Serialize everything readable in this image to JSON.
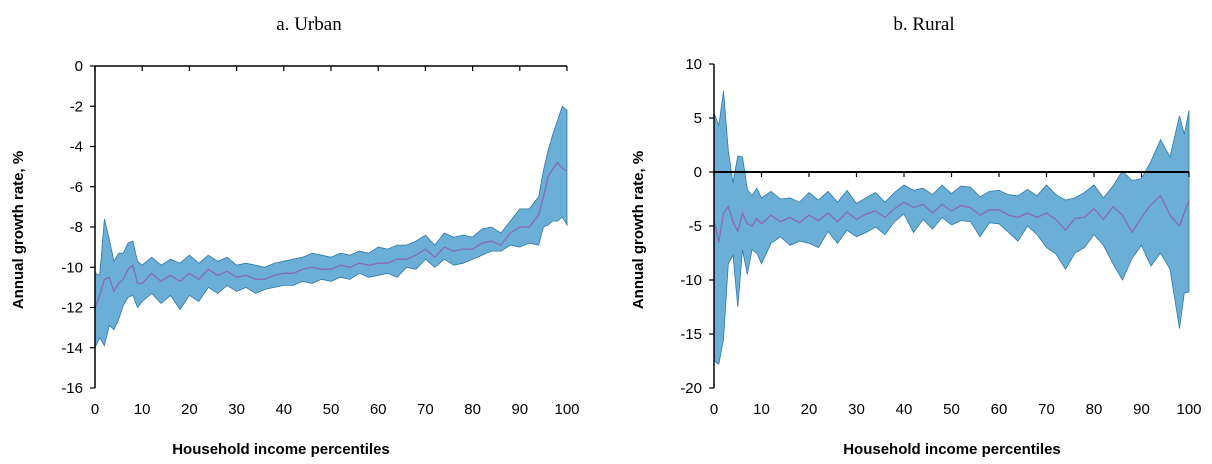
{
  "colors": {
    "band": "#6baed6",
    "band_edge": "#2e7aa6",
    "median": "#8a6bb5",
    "axis": "#000000"
  },
  "chart_data": [
    {
      "id": "urban",
      "type": "area",
      "title": "a. Urban",
      "xlabel": "Household income percentiles",
      "ylabel": "Annual growth rate, %",
      "xlim": [
        0,
        100
      ],
      "ylim": [
        -16,
        0
      ],
      "xticks": [
        0,
        10,
        20,
        30,
        40,
        50,
        60,
        70,
        80,
        90,
        100
      ],
      "yticks": [
        0,
        -2,
        -4,
        -6,
        -8,
        -10,
        -12,
        -14,
        -16
      ],
      "zero_line": false,
      "series": [
        {
          "role": "upper",
          "x": [
            0,
            1,
            2,
            3,
            4,
            5,
            6,
            7,
            8,
            9,
            10,
            12,
            14,
            16,
            18,
            20,
            22,
            24,
            26,
            28,
            30,
            32,
            34,
            36,
            38,
            40,
            42,
            44,
            46,
            48,
            50,
            52,
            54,
            56,
            58,
            60,
            62,
            64,
            66,
            68,
            70,
            72,
            74,
            76,
            78,
            80,
            82,
            84,
            86,
            88,
            90,
            92,
            94,
            95,
            96,
            97,
            98,
            99,
            100
          ],
          "y": [
            -10.3,
            -10.4,
            -7.6,
            -8.6,
            -9.7,
            -9.3,
            -9.3,
            -8.8,
            -8.7,
            -9.7,
            -9.9,
            -9.5,
            -9.9,
            -9.6,
            -9.8,
            -9.4,
            -9.8,
            -9.4,
            -9.7,
            -9.5,
            -9.9,
            -9.8,
            -9.9,
            -10.0,
            -9.8,
            -9.7,
            -9.6,
            -9.5,
            -9.3,
            -9.4,
            -9.5,
            -9.3,
            -9.4,
            -9.2,
            -9.3,
            -9.0,
            -9.1,
            -8.9,
            -8.9,
            -8.7,
            -8.4,
            -8.9,
            -8.3,
            -8.5,
            -8.4,
            -8.5,
            -8.1,
            -8.0,
            -8.3,
            -7.7,
            -7.1,
            -7.1,
            -6.5,
            -5.2,
            -4.2,
            -3.4,
            -2.7,
            -2.0,
            -2.2
          ]
        },
        {
          "role": "median",
          "x": [
            0,
            1,
            2,
            3,
            4,
            5,
            6,
            7,
            8,
            9,
            10,
            12,
            14,
            16,
            18,
            20,
            22,
            24,
            26,
            28,
            30,
            32,
            34,
            36,
            38,
            40,
            42,
            44,
            46,
            48,
            50,
            52,
            54,
            56,
            58,
            60,
            62,
            64,
            66,
            68,
            70,
            72,
            74,
            76,
            78,
            80,
            82,
            84,
            86,
            88,
            90,
            92,
            94,
            95,
            96,
            97,
            98,
            99,
            100
          ],
          "y": [
            -12.0,
            -11.4,
            -10.6,
            -10.5,
            -11.2,
            -10.8,
            -10.6,
            -10.1,
            -9.9,
            -10.8,
            -10.8,
            -10.3,
            -10.7,
            -10.4,
            -10.7,
            -10.3,
            -10.6,
            -10.1,
            -10.4,
            -10.2,
            -10.5,
            -10.4,
            -10.6,
            -10.6,
            -10.4,
            -10.3,
            -10.3,
            -10.1,
            -10.0,
            -10.1,
            -10.1,
            -9.9,
            -10.0,
            -9.8,
            -9.9,
            -9.8,
            -9.8,
            -9.6,
            -9.6,
            -9.4,
            -9.1,
            -9.5,
            -9.0,
            -9.2,
            -9.1,
            -9.1,
            -8.8,
            -8.7,
            -8.9,
            -8.3,
            -8.0,
            -8.0,
            -7.4,
            -6.5,
            -5.5,
            -5.1,
            -4.8,
            -5.1,
            -5.2
          ]
        },
        {
          "role": "lower",
          "x": [
            0,
            1,
            2,
            3,
            4,
            5,
            6,
            7,
            8,
            9,
            10,
            12,
            14,
            16,
            18,
            20,
            22,
            24,
            26,
            28,
            30,
            32,
            34,
            36,
            38,
            40,
            42,
            44,
            46,
            48,
            50,
            52,
            54,
            56,
            58,
            60,
            62,
            64,
            66,
            68,
            70,
            72,
            74,
            76,
            78,
            80,
            82,
            84,
            86,
            88,
            90,
            92,
            94,
            95,
            96,
            97,
            98,
            99,
            100
          ],
          "y": [
            -14.0,
            -13.5,
            -13.9,
            -12.9,
            -13.1,
            -12.6,
            -11.9,
            -11.5,
            -11.4,
            -12.0,
            -11.7,
            -11.3,
            -11.8,
            -11.4,
            -12.1,
            -11.4,
            -11.7,
            -11.0,
            -11.3,
            -10.9,
            -11.2,
            -11.0,
            -11.3,
            -11.1,
            -11.0,
            -10.9,
            -10.9,
            -10.7,
            -10.8,
            -10.6,
            -10.7,
            -10.5,
            -10.6,
            -10.3,
            -10.5,
            -10.4,
            -10.3,
            -10.5,
            -10.0,
            -10.1,
            -9.6,
            -10.0,
            -9.6,
            -9.9,
            -9.8,
            -9.6,
            -9.4,
            -9.2,
            -9.2,
            -8.9,
            -9.0,
            -8.8,
            -8.9,
            -8.0,
            -7.9,
            -7.7,
            -7.7,
            -7.5,
            -7.9
          ]
        }
      ]
    },
    {
      "id": "rural",
      "type": "area",
      "title": "b. Rural",
      "xlabel": "Household income percentiles",
      "ylabel": "Annual growth rate, %",
      "xlim": [
        0,
        100
      ],
      "ylim": [
        -20,
        10
      ],
      "xticks": [
        0,
        10,
        20,
        30,
        40,
        50,
        60,
        70,
        80,
        90,
        100
      ],
      "yticks": [
        10,
        5,
        0,
        -5,
        -10,
        -15,
        -20
      ],
      "zero_line": true,
      "series": [
        {
          "role": "upper",
          "x": [
            0,
            1,
            2,
            3,
            4,
            5,
            6,
            7,
            8,
            9,
            10,
            12,
            14,
            16,
            18,
            20,
            22,
            24,
            26,
            28,
            30,
            32,
            34,
            36,
            38,
            40,
            42,
            44,
            46,
            48,
            50,
            52,
            54,
            56,
            58,
            60,
            62,
            64,
            66,
            68,
            70,
            72,
            74,
            76,
            78,
            80,
            82,
            84,
            86,
            88,
            90,
            92,
            94,
            96,
            98,
            99,
            100
          ],
          "y": [
            5.5,
            4.3,
            7.5,
            2.0,
            -1.0,
            1.5,
            1.4,
            -1.6,
            -2.2,
            -1.5,
            -2.4,
            -1.8,
            -2.5,
            -2.4,
            -2.8,
            -1.9,
            -2.6,
            -1.8,
            -2.8,
            -1.7,
            -2.9,
            -2.4,
            -1.9,
            -2.8,
            -1.9,
            -1.2,
            -1.7,
            -1.5,
            -2.1,
            -1.2,
            -2.0,
            -1.3,
            -1.4,
            -2.3,
            -1.8,
            -1.7,
            -2.1,
            -2.2,
            -1.6,
            -2.2,
            -1.2,
            -2.1,
            -2.6,
            -2.4,
            -1.9,
            -1.2,
            -2.4,
            -1.3,
            0.1,
            -0.8,
            -0.6,
            1.0,
            3.0,
            1.4,
            5.2,
            3.5,
            5.7
          ]
        },
        {
          "role": "median",
          "x": [
            0,
            1,
            2,
            3,
            4,
            5,
            6,
            7,
            8,
            9,
            10,
            12,
            14,
            16,
            18,
            20,
            22,
            24,
            26,
            28,
            30,
            32,
            34,
            36,
            38,
            40,
            42,
            44,
            46,
            48,
            50,
            52,
            54,
            56,
            58,
            60,
            62,
            64,
            66,
            68,
            70,
            72,
            74,
            76,
            78,
            80,
            82,
            84,
            86,
            88,
            90,
            92,
            94,
            96,
            98,
            99,
            100
          ],
          "y": [
            -4.5,
            -6.5,
            -3.8,
            -3.2,
            -4.6,
            -5.5,
            -3.8,
            -4.8,
            -5.0,
            -4.3,
            -4.8,
            -4.0,
            -4.6,
            -4.2,
            -4.7,
            -4.0,
            -4.5,
            -3.8,
            -4.6,
            -3.7,
            -4.4,
            -3.9,
            -3.6,
            -4.2,
            -3.4,
            -2.8,
            -3.3,
            -3.0,
            -3.8,
            -3.0,
            -3.6,
            -3.1,
            -3.3,
            -4.0,
            -3.5,
            -3.5,
            -4.0,
            -4.2,
            -3.8,
            -4.2,
            -3.8,
            -4.4,
            -5.4,
            -4.3,
            -4.2,
            -3.4,
            -4.4,
            -3.2,
            -4.0,
            -5.6,
            -4.2,
            -3.0,
            -2.2,
            -4.0,
            -5.0,
            -3.8,
            -2.6
          ]
        },
        {
          "role": "lower",
          "x": [
            0,
            1,
            2,
            3,
            4,
            5,
            6,
            7,
            8,
            9,
            10,
            12,
            14,
            16,
            18,
            20,
            22,
            24,
            26,
            28,
            30,
            32,
            34,
            36,
            38,
            40,
            42,
            44,
            46,
            48,
            50,
            52,
            54,
            56,
            58,
            60,
            62,
            64,
            66,
            68,
            70,
            72,
            74,
            76,
            78,
            80,
            82,
            84,
            86,
            88,
            90,
            92,
            94,
            96,
            98,
            99,
            100
          ],
          "y": [
            -17.5,
            -17.8,
            -15.5,
            -8.5,
            -7.7,
            -12.5,
            -7.2,
            -9.5,
            -7.2,
            -7.5,
            -8.5,
            -6.6,
            -6.0,
            -6.8,
            -6.4,
            -6.6,
            -7.0,
            -5.5,
            -6.6,
            -5.4,
            -6.0,
            -5.6,
            -5.1,
            -5.8,
            -4.6,
            -3.9,
            -5.6,
            -4.4,
            -5.3,
            -4.2,
            -4.9,
            -4.5,
            -4.6,
            -6.0,
            -4.7,
            -4.8,
            -5.6,
            -6.4,
            -5.0,
            -5.8,
            -7.0,
            -7.6,
            -9.0,
            -7.5,
            -7.0,
            -5.8,
            -6.8,
            -8.5,
            -10.0,
            -8.0,
            -6.8,
            -8.7,
            -7.5,
            -9.0,
            -14.5,
            -11.2,
            -11.1
          ]
        }
      ]
    }
  ]
}
